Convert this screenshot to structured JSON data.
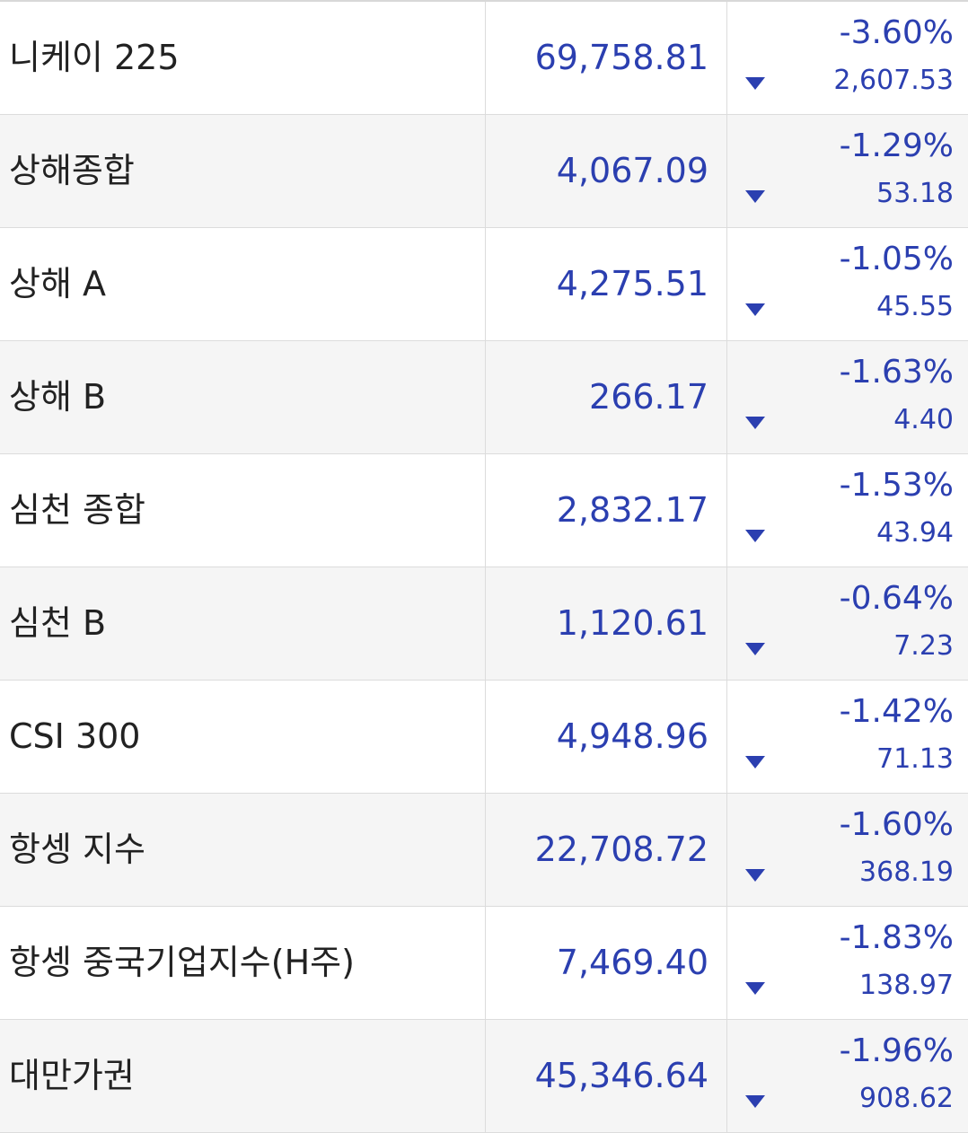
{
  "table": {
    "rows": [
      {
        "name": "니케이 225",
        "price": "69,758.81",
        "change_pct": "-3.60%",
        "change": "2,607.53"
      },
      {
        "name": "상해종합",
        "price": "4,067.09",
        "change_pct": "-1.29%",
        "change": "53.18"
      },
      {
        "name": "상해 A",
        "price": "4,275.51",
        "change_pct": "-1.05%",
        "change": "45.55"
      },
      {
        "name": "상해 B",
        "price": "266.17",
        "change_pct": "-1.63%",
        "change": "4.40"
      },
      {
        "name": "심천 종합",
        "price": "2,832.17",
        "change_pct": "-1.53%",
        "change": "43.94"
      },
      {
        "name": "심천 B",
        "price": "1,120.61",
        "change_pct": "-0.64%",
        "change": "7.23"
      },
      {
        "name": "CSI 300",
        "price": "4,948.96",
        "change_pct": "-1.42%",
        "change": "71.13"
      },
      {
        "name": "항셍 지수",
        "price": "22,708.72",
        "change_pct": "-1.60%",
        "change": "368.19"
      },
      {
        "name": "항셍 중국기업지수(H주)",
        "price": "7,469.40",
        "change_pct": "-1.83%",
        "change": "138.97"
      },
      {
        "name": "대만가권",
        "price": "45,346.64",
        "change_pct": "-1.96%",
        "change": "908.62"
      }
    ]
  }
}
